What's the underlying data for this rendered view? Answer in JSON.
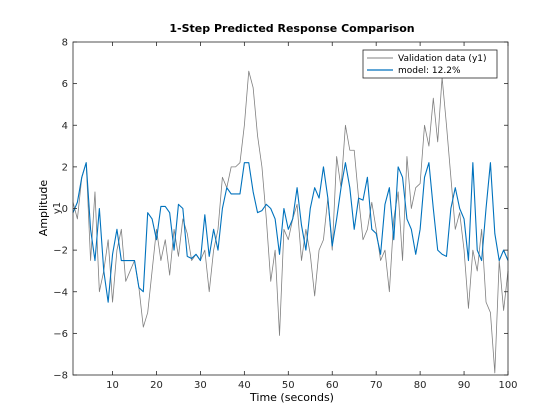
{
  "chart_data": {
    "type": "line",
    "title": "1-Step Predicted Response Comparison",
    "xlabel": "Time (seconds)",
    "ylabel": "Amplitude",
    "ylabel_channel": "y1",
    "xlim": [
      1,
      100
    ],
    "ylim": [
      -8,
      8
    ],
    "xticks": [
      10,
      20,
      30,
      40,
      50,
      60,
      70,
      80,
      90,
      100
    ],
    "yticks": [
      -8,
      -6,
      -4,
      -2,
      0,
      2,
      4,
      6,
      8
    ],
    "grid": false,
    "legend_position": "top-right",
    "series": [
      {
        "name": "Validation data (y1)",
        "color": "#808080",
        "x": [
          1,
          2,
          3,
          4,
          5,
          6,
          7,
          8,
          9,
          10,
          11,
          12,
          13,
          14,
          15,
          16,
          17,
          18,
          19,
          20,
          21,
          22,
          23,
          24,
          25,
          26,
          27,
          28,
          29,
          30,
          31,
          32,
          33,
          34,
          35,
          36,
          37,
          38,
          39,
          40,
          41,
          42,
          43,
          44,
          45,
          46,
          47,
          48,
          49,
          50,
          51,
          52,
          53,
          54,
          55,
          56,
          57,
          58,
          59,
          60,
          61,
          62,
          63,
          64,
          65,
          66,
          67,
          68,
          69,
          70,
          71,
          72,
          73,
          74,
          75,
          76,
          77,
          78,
          79,
          80,
          81,
          82,
          83,
          84,
          85,
          86,
          87,
          88,
          89,
          90,
          91,
          92,
          93,
          94,
          95,
          96,
          97,
          98,
          99,
          100
        ],
        "values": [
          0.3,
          -0.5,
          1.5,
          2.2,
          -2.5,
          0.8,
          -4.0,
          -3.0,
          -1.5,
          -4.5,
          -2.0,
          -1.0,
          -3.5,
          -3.0,
          -2.5,
          -3.8,
          -5.7,
          -5.0,
          -3.0,
          -1.0,
          -2.5,
          -1.5,
          -3.2,
          -1.0,
          -2.3,
          -0.5,
          -1.2,
          -2.5,
          -2.2,
          -2.5,
          -2.0,
          -4.0,
          -2.0,
          -1.0,
          1.5,
          1.0,
          2.0,
          2.0,
          2.2,
          4.0,
          6.6,
          5.8,
          3.5,
          2.0,
          -0.5,
          -3.5,
          -2.0,
          -6.1,
          -1.0,
          -1.5,
          -0.5,
          0.2,
          -2.5,
          -1.0,
          -2.2,
          -4.2,
          -2.0,
          -1.5,
          0.5,
          -2.0,
          2.5,
          1.0,
          4.0,
          2.8,
          2.8,
          0.5,
          -1.5,
          -1.0,
          0.3,
          -1.0,
          -2.5,
          -2.0,
          -4.0,
          -0.5,
          0.8,
          -2.5,
          2.5,
          0.0,
          1.0,
          1.2,
          4.0,
          3.0,
          5.3,
          3.2,
          6.3,
          4.0,
          1.5,
          -1.0,
          -0.2,
          -2.0,
          -4.8,
          -2.0,
          -3.0,
          -1.0,
          -4.5,
          -5.0,
          -7.9,
          -2.5,
          -4.9,
          -3.0
        ]
      },
      {
        "name": "model: 12.2%",
        "color": "#0072BD",
        "x": [
          1,
          2,
          3,
          4,
          5,
          6,
          7,
          8,
          9,
          10,
          11,
          12,
          13,
          14,
          15,
          16,
          17,
          18,
          19,
          20,
          21,
          22,
          23,
          24,
          25,
          26,
          27,
          28,
          29,
          30,
          31,
          32,
          33,
          34,
          35,
          36,
          37,
          38,
          39,
          40,
          41,
          42,
          43,
          44,
          45,
          46,
          47,
          48,
          49,
          50,
          51,
          52,
          53,
          54,
          55,
          56,
          57,
          58,
          59,
          60,
          61,
          62,
          63,
          64,
          65,
          66,
          67,
          68,
          69,
          70,
          71,
          72,
          73,
          74,
          75,
          76,
          77,
          78,
          79,
          80,
          81,
          82,
          83,
          84,
          85,
          86,
          87,
          88,
          89,
          90,
          91,
          92,
          93,
          94,
          95,
          96,
          97,
          98,
          99,
          100
        ],
        "values": [
          -0.2,
          0.3,
          1.5,
          2.2,
          -1.0,
          -2.5,
          0.0,
          -3.0,
          -4.5,
          -2.2,
          -1.0,
          -2.5,
          -2.5,
          -2.5,
          -2.5,
          -3.8,
          -4.0,
          -0.2,
          -0.5,
          -1.5,
          0.1,
          0.1,
          -0.2,
          -2.0,
          0.2,
          0.0,
          -2.3,
          -2.4,
          -2.2,
          -2.5,
          -0.3,
          -2.3,
          -1.0,
          -2.0,
          0.0,
          1.0,
          0.7,
          0.7,
          0.7,
          2.2,
          2.2,
          0.8,
          -0.2,
          -0.1,
          0.2,
          0.0,
          -0.5,
          -2.2,
          0.0,
          -1.0,
          -0.5,
          1.0,
          -0.8,
          -2.0,
          0.0,
          1.0,
          0.5,
          2.0,
          0.5,
          -1.8,
          -0.5,
          1.0,
          2.2,
          1.0,
          -1.0,
          0.5,
          0.4,
          1.5,
          -1.0,
          -1.2,
          -2.2,
          0.2,
          1.0,
          -1.5,
          2.0,
          1.5,
          -0.5,
          -1.0,
          -2.2,
          -1.0,
          1.5,
          2.2,
          0.0,
          -2.0,
          -2.2,
          -2.3,
          0.0,
          1.0,
          0.0,
          -0.5,
          -2.5,
          2.2,
          -2.0,
          -2.5,
          0.0,
          2.2,
          -1.2,
          -2.5,
          -2.0,
          -2.5
        ]
      }
    ]
  }
}
